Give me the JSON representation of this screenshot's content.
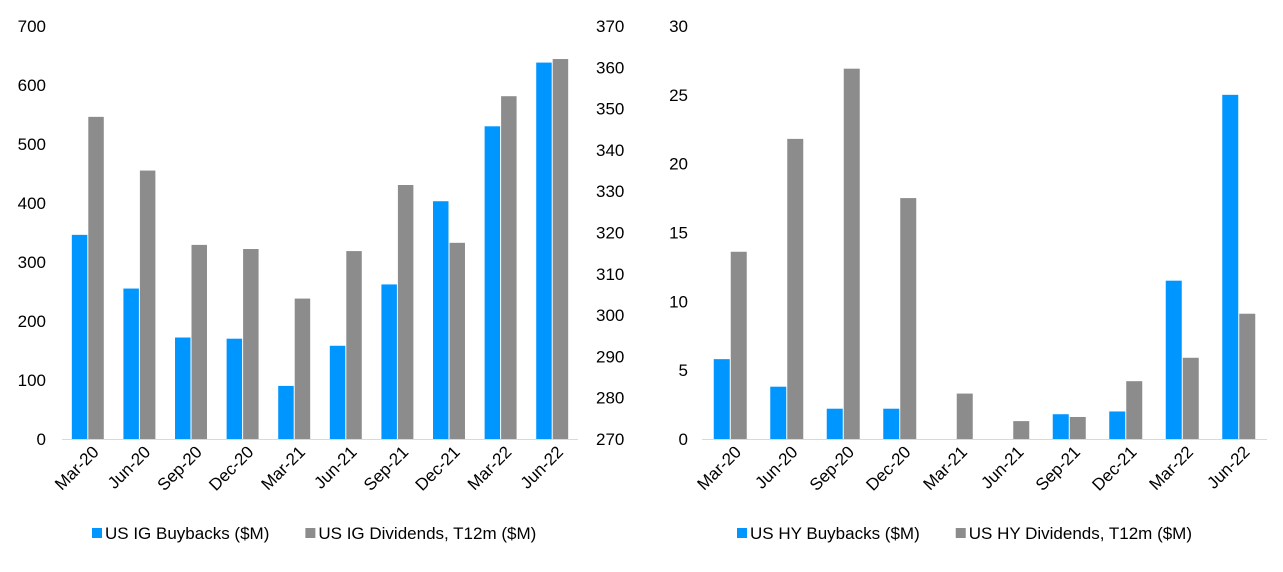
{
  "chart_data": [
    {
      "type": "bar",
      "categories": [
        "Mar-20",
        "Jun-20",
        "Sep-20",
        "Dec-20",
        "Mar-21",
        "Jun-21",
        "Sep-21",
        "Dec-21",
        "Mar-22",
        "Jun-22"
      ],
      "series": [
        {
          "name": "US IG Buybacks ($M)",
          "axis": "left",
          "color": "#0096FF",
          "values": [
            346,
            255,
            172,
            170,
            90,
            158,
            262,
            403,
            530,
            638
          ]
        },
        {
          "name": "US IG Dividends, T12m ($M)",
          "axis": "right",
          "color": "#8C8C8C",
          "values": [
            348,
            335,
            317,
            316,
            304,
            315.5,
            331.5,
            317.5,
            353,
            362
          ]
        }
      ],
      "ylim": [
        0,
        700
      ],
      "yticks": [
        0,
        100,
        200,
        300,
        400,
        500,
        600,
        700
      ],
      "y2lim": [
        270,
        370
      ],
      "y2ticks": [
        270,
        280,
        290,
        300,
        310,
        320,
        330,
        340,
        350,
        360,
        370
      ],
      "grid": false,
      "legend_position": "bottom"
    },
    {
      "type": "bar",
      "categories": [
        "Mar-20",
        "Jun-20",
        "Sep-20",
        "Dec-20",
        "Mar-21",
        "Jun-21",
        "Sep-21",
        "Dec-21",
        "Mar-22",
        "Jun-22"
      ],
      "series": [
        {
          "name": "US HY Buybacks ($M)",
          "axis": "left",
          "color": "#0096FF",
          "values": [
            5.8,
            3.8,
            2.2,
            2.2,
            0,
            0,
            1.8,
            2.0,
            11.5,
            25.0
          ]
        },
        {
          "name": "US HY Dividends, T12m ($M)",
          "axis": "left",
          "color": "#8C8C8C",
          "values": [
            13.6,
            21.8,
            26.9,
            17.5,
            3.3,
            1.3,
            1.6,
            4.2,
            5.9,
            9.1
          ]
        }
      ],
      "ylim": [
        0,
        30
      ],
      "yticks": [
        0,
        5,
        10,
        15,
        20,
        25,
        30
      ],
      "grid": false,
      "legend_position": "bottom"
    }
  ]
}
